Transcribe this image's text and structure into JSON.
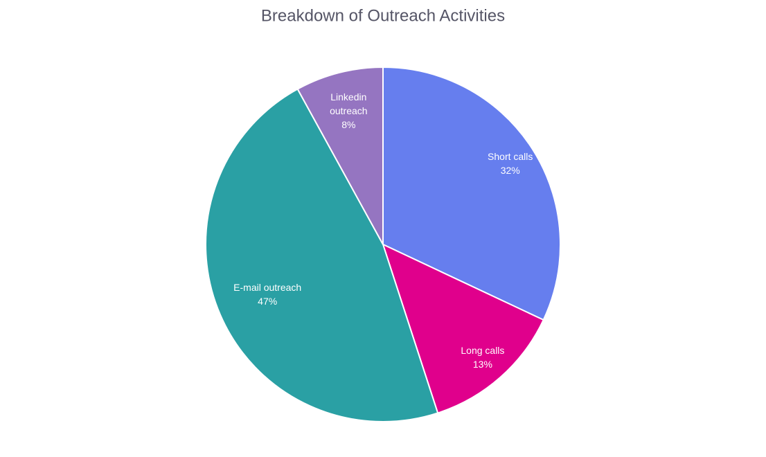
{
  "chart_data": {
    "type": "pie",
    "title": "Breakdown of Outreach Activities",
    "categories": [
      "Short calls",
      "Long calls",
      "E-mail outreach",
      "Linkedin outreach"
    ],
    "values": [
      32,
      13,
      47,
      8
    ],
    "value_labels": [
      "32%",
      "13%",
      "47%",
      "8%"
    ],
    "colors": [
      "#667eee",
      "#e0008c",
      "#2aa0a4",
      "#9575c1"
    ]
  }
}
